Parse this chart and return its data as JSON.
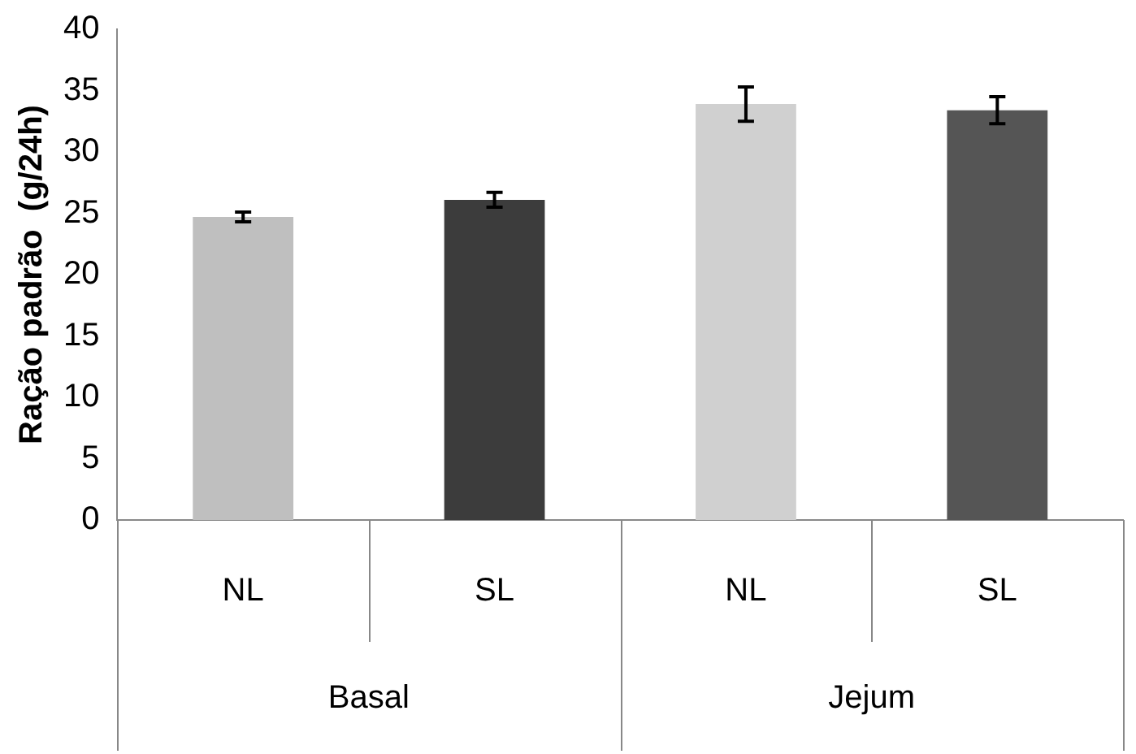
{
  "chart_data": {
    "type": "bar",
    "ylabel": "Ração padrão  (g/24h)",
    "categories": [
      "NL",
      "SL",
      "NL",
      "SL"
    ],
    "values": [
      24.7,
      26.1,
      33.9,
      33.4
    ],
    "errors": [
      0.4,
      0.6,
      1.4,
      1.1
    ],
    "colors": [
      "#bfbfbf",
      "#3c3c3c",
      "#d0d0d0",
      "#555555"
    ],
    "ylim": [
      0,
      40
    ],
    "yticks": [
      0,
      5,
      10,
      15,
      20,
      25,
      30,
      35,
      40
    ],
    "annotations": [
      "Basal",
      "Jejum"
    ],
    "grid": false,
    "legend": false
  }
}
